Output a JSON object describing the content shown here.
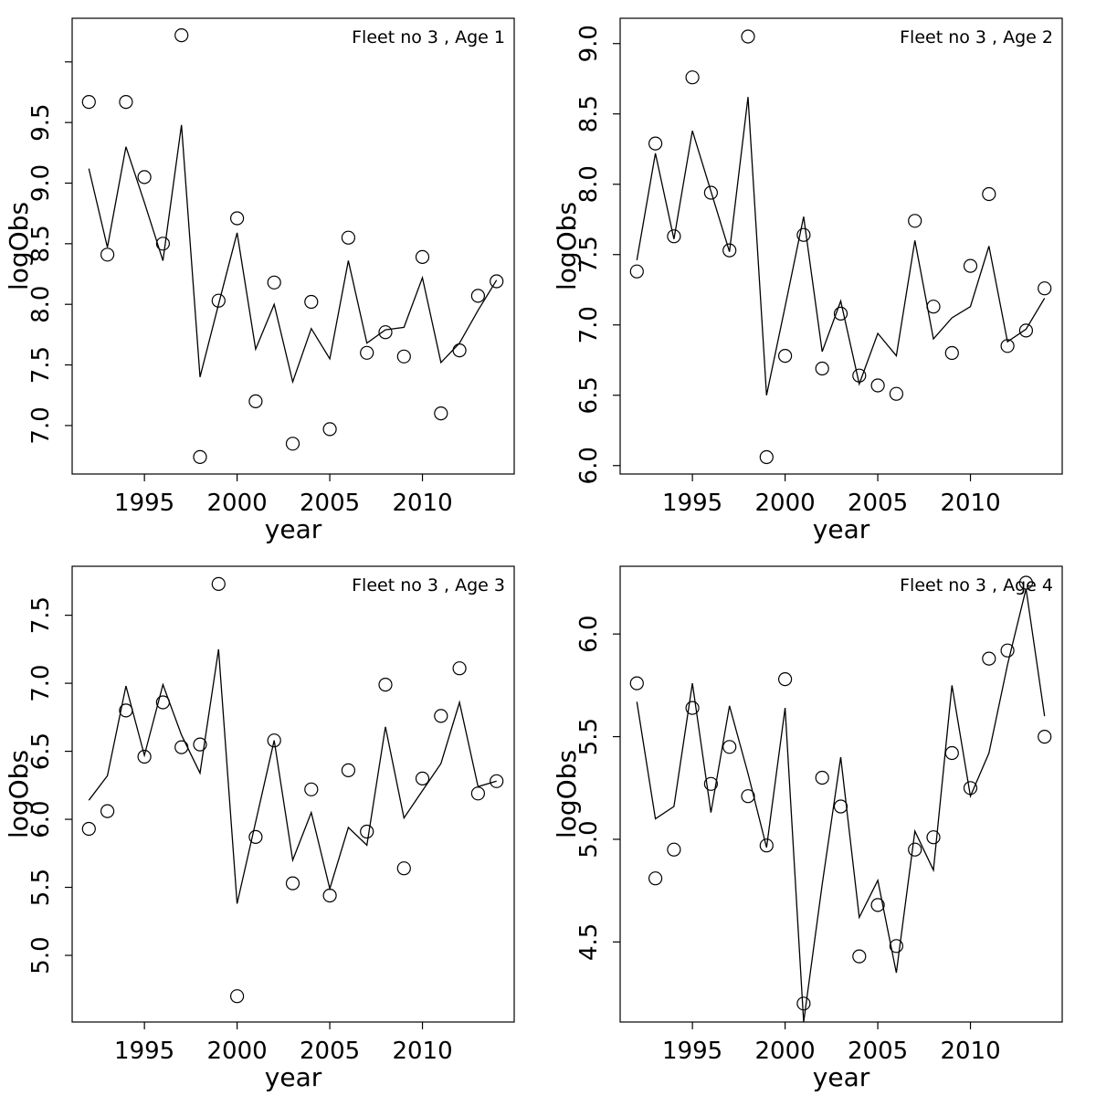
{
  "figure": {
    "background": "#ffffff",
    "axis_color": "#000000",
    "x_axis_label": "year",
    "y_axis_label": "logObs",
    "x_ticks": [
      1995,
      2000,
      2005,
      2010
    ],
    "xlim": [
      1991.1,
      2014.95
    ],
    "years": [
      1992,
      1993,
      1994,
      1995,
      1996,
      1997,
      1998,
      1999,
      2000,
      2001,
      2002,
      2003,
      2004,
      2005,
      2006,
      2007,
      2008,
      2009,
      2010,
      2011,
      2012,
      2013,
      2014
    ],
    "marker": "open-circle",
    "line_color": "#000000",
    "point_color": "#000000"
  },
  "chart_data": [
    {
      "type": "line",
      "title": "Fleet no 3 , Age 1",
      "xlabel": "year",
      "ylabel": "logObs",
      "x": [
        1992,
        1993,
        1994,
        1995,
        1996,
        1997,
        1998,
        1999,
        2000,
        2001,
        2002,
        2003,
        2004,
        2005,
        2006,
        2007,
        2008,
        2009,
        2010,
        2011,
        2012,
        2013,
        2014
      ],
      "series": [
        {
          "name": "observed",
          "style": "points",
          "values": [
            9.67,
            8.41,
            9.67,
            9.05,
            8.5,
            10.22,
            6.74,
            8.03,
            8.71,
            7.2,
            8.18,
            6.85,
            8.02,
            6.97,
            8.55,
            7.6,
            7.77,
            7.57,
            8.39,
            7.1,
            7.62,
            8.07,
            8.19
          ]
        },
        {
          "name": "fitted",
          "style": "line",
          "values": [
            9.12,
            8.47,
            9.3,
            8.84,
            8.36,
            9.48,
            7.4,
            8.0,
            8.59,
            7.63,
            8.0,
            7.36,
            7.8,
            7.55,
            8.36,
            7.68,
            7.79,
            7.81,
            8.22,
            7.52,
            7.68,
            7.95,
            8.2
          ]
        }
      ],
      "ylim": [
        6.6,
        10.36
      ],
      "y_ticks": [
        7.0,
        7.5,
        8.0,
        8.5,
        9.0,
        9.5,
        10.0
      ],
      "y_tick_labels": [
        "7.0",
        "7.5",
        "8.0",
        "8.5",
        "9.0",
        "9.5",
        ""
      ],
      "xlim": [
        1991.1,
        2014.95
      ],
      "x_ticks": [
        1995,
        2000,
        2005,
        2010
      ],
      "grid": false,
      "legend": "none"
    },
    {
      "type": "line",
      "title": "Fleet no 3 , Age 2",
      "xlabel": "year",
      "ylabel": "logObs",
      "x": [
        1992,
        1993,
        1994,
        1995,
        1996,
        1997,
        1998,
        1999,
        2000,
        2001,
        2002,
        2003,
        2004,
        2005,
        2006,
        2007,
        2008,
        2009,
        2010,
        2011,
        2012,
        2013,
        2014
      ],
      "series": [
        {
          "name": "observed",
          "style": "points",
          "values": [
            7.38,
            8.29,
            7.63,
            8.76,
            7.94,
            7.53,
            9.05,
            6.06,
            6.78,
            7.64,
            6.69,
            7.08,
            6.64,
            6.57,
            6.51,
            7.74,
            7.13,
            6.8,
            7.42,
            7.93,
            6.85,
            6.96,
            7.26
          ]
        },
        {
          "name": "fitted",
          "style": "line",
          "values": [
            7.46,
            8.22,
            7.61,
            8.38,
            7.95,
            7.52,
            8.62,
            6.5,
            7.13,
            7.77,
            6.81,
            7.17,
            6.58,
            6.94,
            6.78,
            7.6,
            6.9,
            7.05,
            7.13,
            7.56,
            6.88,
            6.97,
            7.19
          ]
        }
      ],
      "ylim": [
        5.94,
        9.18
      ],
      "y_ticks": [
        6.0,
        6.5,
        7.0,
        7.5,
        8.0,
        8.5,
        9.0
      ],
      "y_tick_labels": [
        "6.0",
        "6.5",
        "7.0",
        "7.5",
        "8.0",
        "8.5",
        "9.0"
      ],
      "xlim": [
        1991.1,
        2014.95
      ],
      "x_ticks": [
        1995,
        2000,
        2005,
        2010
      ],
      "grid": false,
      "legend": "none"
    },
    {
      "type": "line",
      "title": "Fleet no 3 , Age 3",
      "xlabel": "year",
      "ylabel": "logObs",
      "x": [
        1992,
        1993,
        1994,
        1995,
        1996,
        1997,
        1998,
        1999,
        2000,
        2001,
        2002,
        2003,
        2004,
        2005,
        2006,
        2007,
        2008,
        2009,
        2010,
        2011,
        2012,
        2013,
        2014
      ],
      "series": [
        {
          "name": "observed",
          "style": "points",
          "values": [
            5.93,
            6.06,
            6.8,
            6.46,
            6.86,
            6.53,
            6.55,
            7.73,
            4.7,
            5.87,
            6.58,
            5.53,
            6.22,
            5.44,
            6.36,
            5.91,
            6.99,
            5.64,
            6.3,
            6.76,
            7.11,
            6.19,
            6.28
          ]
        },
        {
          "name": "fitted",
          "style": "line",
          "values": [
            6.14,
            6.32,
            6.98,
            6.47,
            6.99,
            6.62,
            6.34,
            7.25,
            5.38,
            5.98,
            6.58,
            5.7,
            6.05,
            5.49,
            5.94,
            5.81,
            6.68,
            6.01,
            6.21,
            6.41,
            6.86,
            6.24,
            6.28
          ]
        }
      ],
      "ylim": [
        4.51,
        7.86
      ],
      "y_ticks": [
        5.0,
        5.5,
        6.0,
        6.5,
        7.0,
        7.5
      ],
      "y_tick_labels": [
        "5.0",
        "5.5",
        "6.0",
        "6.5",
        "7.0",
        "7.5"
      ],
      "xlim": [
        1991.1,
        2014.95
      ],
      "x_ticks": [
        1995,
        2000,
        2005,
        2010
      ],
      "grid": false,
      "legend": "none"
    },
    {
      "type": "line",
      "title": "Fleet no 3 , Age 4",
      "xlabel": "year",
      "ylabel": "logObs",
      "x": [
        1992,
        1993,
        1994,
        1995,
        1996,
        1997,
        1998,
        1999,
        2000,
        2001,
        2002,
        2003,
        2004,
        2005,
        2006,
        2007,
        2008,
        2009,
        2010,
        2011,
        2012,
        2013,
        2014
      ],
      "series": [
        {
          "name": "observed",
          "style": "points",
          "values": [
            5.76,
            4.81,
            4.95,
            5.64,
            5.27,
            5.45,
            5.21,
            4.97,
            5.78,
            4.2,
            5.3,
            5.16,
            4.43,
            4.68,
            4.48,
            4.95,
            5.01,
            5.42,
            5.25,
            5.88,
            5.92,
            6.25,
            5.5
          ]
        },
        {
          "name": "fitted",
          "style": "line",
          "values": [
            5.67,
            5.1,
            5.16,
            5.76,
            5.13,
            5.65,
            5.32,
            4.96,
            5.64,
            4.11,
            4.78,
            5.4,
            4.62,
            4.8,
            4.35,
            5.04,
            4.85,
            5.75,
            5.21,
            5.42,
            5.85,
            6.22,
            5.6
          ]
        }
      ],
      "ylim": [
        4.11,
        6.33
      ],
      "y_ticks": [
        4.5,
        5.0,
        5.5,
        6.0
      ],
      "y_tick_labels": [
        "4.5",
        "5.0",
        "5.5",
        "6.0"
      ],
      "xlim": [
        1991.1,
        2014.95
      ],
      "x_ticks": [
        1995,
        2000,
        2005,
        2010
      ],
      "grid": false,
      "legend": "none"
    }
  ]
}
